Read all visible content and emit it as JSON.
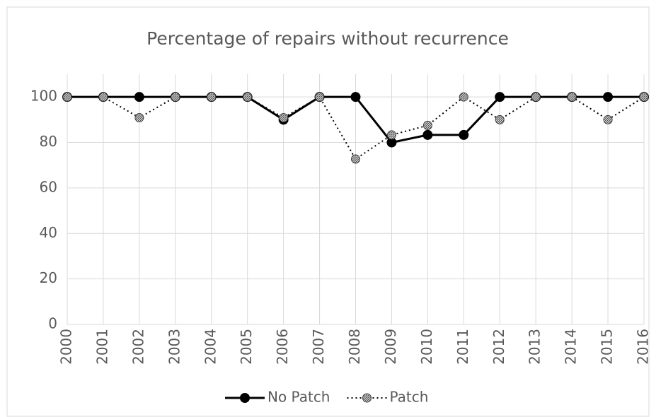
{
  "chart_data": {
    "type": "line",
    "title": "Percentage of repairs without recurrence",
    "categories": [
      "2000",
      "2001",
      "2002",
      "2003",
      "2004",
      "2005",
      "2006",
      "2007",
      "2008",
      "2009",
      "2010",
      "2011",
      "2012",
      "2013",
      "2014",
      "2015",
      "2016"
    ],
    "series": [
      {
        "name": "No Patch",
        "color": "#000000",
        "line_style": "solid",
        "values": [
          100,
          100,
          100,
          100,
          100,
          100,
          90,
          100,
          100,
          80,
          83.3,
          83.3,
          100,
          100,
          100,
          100,
          100
        ]
      },
      {
        "name": "Patch",
        "color": "#a6a6a6",
        "line_style": "dotted",
        "values": [
          100,
          100,
          90.9,
          100,
          100,
          100,
          90.9,
          100,
          72.7,
          83.3,
          87.5,
          100,
          90,
          100,
          100,
          90,
          100
        ]
      }
    ],
    "ylim": [
      0,
      110
    ],
    "yticks": [
      0,
      20,
      40,
      60,
      80,
      100
    ],
    "grid": true,
    "legend": "bottom"
  }
}
